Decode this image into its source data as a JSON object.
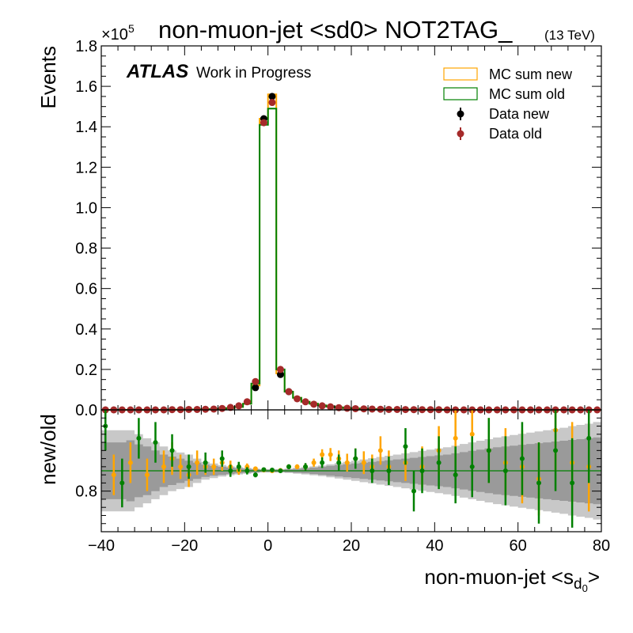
{
  "chart_data": [
    {
      "type": "histogram",
      "panel": "main",
      "title": "non-muon-jet <sd0> NOT2TAG_",
      "title_suffix": "(13 TeV)",
      "experiment_label": "ATLAS",
      "experiment_sublabel": "Work in Progress",
      "ylabel": "Events",
      "y_scale_exponent": "×10",
      "y_scale_power": "5",
      "xlim": [
        -40,
        80
      ],
      "ylim": [
        0,
        1.8
      ],
      "y_ticks": [
        "0.0",
        "0.2",
        "0.4",
        "0.6",
        "0.8",
        "1.0",
        "1.2",
        "1.4",
        "1.6",
        "1.8"
      ],
      "legend_position": "top-right",
      "bin_edges": [
        -40,
        -38,
        -36,
        -34,
        -32,
        -30,
        -28,
        -26,
        -24,
        -22,
        -20,
        -18,
        -16,
        -14,
        -12,
        -10,
        -8,
        -6,
        -4,
        -2,
        0,
        2,
        4,
        6,
        8,
        10,
        12,
        14,
        16,
        18,
        20,
        22,
        24,
        26,
        28,
        30,
        32,
        34,
        36,
        38,
        40,
        42,
        44,
        46,
        48,
        50,
        52,
        54,
        56,
        58,
        60,
        62,
        64,
        66,
        68,
        70,
        72,
        74,
        76,
        78,
        80
      ],
      "series": [
        {
          "name": "MC sum new",
          "style": "step",
          "color": "#ffa500",
          "values": [
            0,
            0,
            0,
            0,
            0,
            0,
            0,
            0,
            0.001,
            0.001,
            0.002,
            0.002,
            0.003,
            0.004,
            0.006,
            0.009,
            0.015,
            0.03,
            0.12,
            1.44,
            1.56,
            0.18,
            0.09,
            0.06,
            0.04,
            0.03,
            0.022,
            0.016,
            0.012,
            0.009,
            0.007,
            0.005,
            0.004,
            0.003,
            0.002,
            0.002,
            0.0015,
            0.001,
            0.001,
            0.001,
            0.001,
            0,
            0,
            0,
            0,
            0,
            0,
            0,
            0,
            0,
            0,
            0,
            0,
            0,
            0,
            0,
            0,
            0,
            0,
            0
          ]
        },
        {
          "name": "MC sum old",
          "style": "step",
          "color": "#008000",
          "values": [
            0,
            0,
            0,
            0,
            0,
            0,
            0,
            0,
            0.001,
            0.001,
            0.002,
            0.002,
            0.003,
            0.004,
            0.006,
            0.009,
            0.015,
            0.03,
            0.13,
            1.41,
            1.49,
            0.2,
            0.09,
            0.06,
            0.04,
            0.03,
            0.022,
            0.016,
            0.012,
            0.009,
            0.007,
            0.005,
            0.004,
            0.003,
            0.002,
            0.002,
            0.0015,
            0.001,
            0.001,
            0.001,
            0.001,
            0,
            0,
            0,
            0,
            0,
            0,
            0,
            0,
            0,
            0,
            0,
            0,
            0,
            0,
            0,
            0,
            0,
            0,
            0
          ]
        },
        {
          "name": "Data new",
          "style": "points",
          "color": "#000000",
          "x": [
            -3,
            -1,
            1,
            3,
            5
          ],
          "values": [
            0.11,
            1.44,
            1.55,
            0.175,
            0.09
          ]
        },
        {
          "name": "Data old",
          "style": "points",
          "color": "#a52a2a",
          "x": [
            -39,
            -37,
            -35,
            -33,
            -31,
            -29,
            -27,
            -25,
            -23,
            -21,
            -19,
            -17,
            -15,
            -13,
            -11,
            -9,
            -7,
            -5,
            -3,
            -1,
            1,
            3,
            5,
            7,
            9,
            11,
            13,
            15,
            17,
            19,
            21,
            23,
            25,
            27,
            29,
            31,
            33,
            35,
            37,
            39,
            41,
            43,
            45,
            47,
            49,
            51,
            53,
            55,
            57,
            59,
            61,
            63,
            65,
            67,
            69,
            71,
            73,
            75,
            77,
            79
          ],
          "values": [
            0,
            0,
            0,
            0,
            0,
            0,
            0,
            0,
            0.001,
            0.001,
            0.002,
            0.002,
            0.003,
            0.004,
            0.007,
            0.012,
            0.02,
            0.04,
            0.14,
            1.42,
            1.52,
            0.2,
            0.09,
            0.055,
            0.04,
            0.028,
            0.02,
            0.015,
            0.011,
            0.008,
            0.006,
            0.005,
            0.004,
            0.003,
            0.002,
            0.002,
            0.0015,
            0.001,
            0.001,
            0.001,
            0.001,
            0,
            0,
            0,
            0,
            0,
            0,
            0,
            0,
            0,
            0,
            0,
            0,
            0,
            0,
            0,
            0,
            0,
            0,
            0
          ]
        }
      ]
    },
    {
      "type": "scatter",
      "panel": "ratio",
      "ylabel": "new/old",
      "xlabel": "non-muon-jet <s",
      "xlabel_sub": "d",
      "xlabel_subsub": "0",
      "xlabel_close": ">",
      "xlim": [
        -40,
        80
      ],
      "ylim": [
        0.7,
        1.0
      ],
      "x_ticks": [
        "−40",
        "−20",
        "0",
        "20",
        "40",
        "60",
        "80"
      ],
      "y_ticks": [
        "0.8"
      ],
      "reference_value": 0.85,
      "band_inner_halfwidth": [
        0.07,
        0.07,
        0.07,
        0.075,
        0.065,
        0.06,
        0.05,
        0.04,
        0.035,
        0.03,
        0.025,
        0.02,
        0.015,
        0.012,
        0.01,
        0.008,
        0.006,
        0.005,
        0.004,
        0.003,
        0.003,
        0.003,
        0.004,
        0.005,
        0.006,
        0.008,
        0.01,
        0.012,
        0.014,
        0.016,
        0.018,
        0.02,
        0.022,
        0.024,
        0.026,
        0.028,
        0.03,
        0.032,
        0.034,
        0.036,
        0.038,
        0.04,
        0.043,
        0.046,
        0.049,
        0.052,
        0.055,
        0.058,
        0.06,
        0.062,
        0.064,
        0.066,
        0.068,
        0.07,
        0.072,
        0.074,
        0.076,
        0.078,
        0.08,
        0.082
      ],
      "band_outer_halfwidth": [
        0.1,
        0.1,
        0.1,
        0.1,
        0.09,
        0.08,
        0.07,
        0.06,
        0.05,
        0.045,
        0.04,
        0.03,
        0.022,
        0.018,
        0.014,
        0.011,
        0.009,
        0.007,
        0.005,
        0.004,
        0.004,
        0.004,
        0.005,
        0.007,
        0.009,
        0.011,
        0.013,
        0.016,
        0.019,
        0.022,
        0.025,
        0.028,
        0.031,
        0.034,
        0.037,
        0.04,
        0.043,
        0.046,
        0.049,
        0.052,
        0.055,
        0.058,
        0.062,
        0.066,
        0.07,
        0.074,
        0.078,
        0.082,
        0.085,
        0.088,
        0.091,
        0.094,
        0.097,
        0.1,
        0.103,
        0.106,
        0.11,
        0.113,
        0.116,
        0.12
      ],
      "series": [
        {
          "name": "MC sum new",
          "color": "#ffa500",
          "x": [
            -37,
            -33,
            -29,
            -25,
            -23,
            -21,
            -19,
            -17,
            -15,
            -13,
            -11,
            -9,
            -7,
            -5,
            -3,
            -1,
            1,
            3,
            5,
            7,
            9,
            11,
            13,
            15,
            17,
            19,
            21,
            23,
            25,
            27,
            29,
            33,
            37,
            41,
            45,
            49,
            53,
            57,
            61,
            65,
            69,
            73,
            77
          ],
          "y": [
            0.84,
            0.87,
            0.84,
            0.86,
            0.88,
            0.86,
            0.84,
            0.87,
            0.86,
            0.86,
            0.87,
            0.86,
            0.85,
            0.86,
            0.855,
            0.852,
            0.85,
            0.851,
            0.86,
            0.86,
            0.86,
            0.87,
            0.89,
            0.89,
            0.88,
            0.87,
            0.88,
            0.87,
            0.86,
            0.9,
            0.86,
            0.87,
            0.86,
            0.9,
            0.93,
            0.94,
            0.9,
            0.87,
            0.86,
            0.83,
            0.95,
            0.87,
            0.86
          ],
          "err": [
            0.05,
            0.05,
            0.04,
            0.04,
            0.04,
            0.03,
            0.03,
            0.03,
            0.02,
            0.02,
            0.02,
            0.015,
            0.01,
            0.008,
            0.005,
            0.003,
            0.003,
            0.004,
            0.005,
            0.006,
            0.008,
            0.01,
            0.013,
            0.016,
            0.02,
            0.022,
            0.025,
            0.028,
            0.03,
            0.035,
            0.04,
            0.045,
            0.05,
            0.06,
            0.07,
            0.075,
            0.08,
            0.085,
            0.09,
            0.09,
            0.1,
            0.1,
            0.11
          ]
        },
        {
          "name": "MC sum old",
          "color": "#008000",
          "x": [
            -39,
            -35,
            -31,
            -27,
            -23,
            -19,
            -15,
            -11,
            -9,
            -7,
            -5,
            -3,
            -1,
            1,
            3,
            5,
            9,
            13,
            17,
            21,
            25,
            29,
            33,
            35,
            37,
            41,
            45,
            49,
            53,
            57,
            61,
            65,
            69,
            73,
            77
          ],
          "y": [
            0.96,
            0.82,
            0.93,
            0.92,
            0.9,
            0.86,
            0.87,
            0.88,
            0.85,
            0.86,
            0.85,
            0.84,
            0.853,
            0.852,
            0.85,
            0.86,
            0.86,
            0.87,
            0.87,
            0.88,
            0.85,
            0.85,
            0.91,
            0.8,
            0.85,
            0.87,
            0.84,
            0.86,
            0.9,
            0.85,
            0.88,
            0.82,
            0.9,
            0.82,
            0.93
          ],
          "err": [
            0.06,
            0.06,
            0.05,
            0.05,
            0.04,
            0.03,
            0.025,
            0.02,
            0.015,
            0.012,
            0.009,
            0.006,
            0.003,
            0.003,
            0.004,
            0.006,
            0.009,
            0.013,
            0.02,
            0.025,
            0.03,
            0.035,
            0.045,
            0.05,
            0.055,
            0.065,
            0.07,
            0.075,
            0.08,
            0.085,
            0.09,
            0.1,
            0.1,
            0.11,
            0.11
          ]
        }
      ]
    }
  ]
}
